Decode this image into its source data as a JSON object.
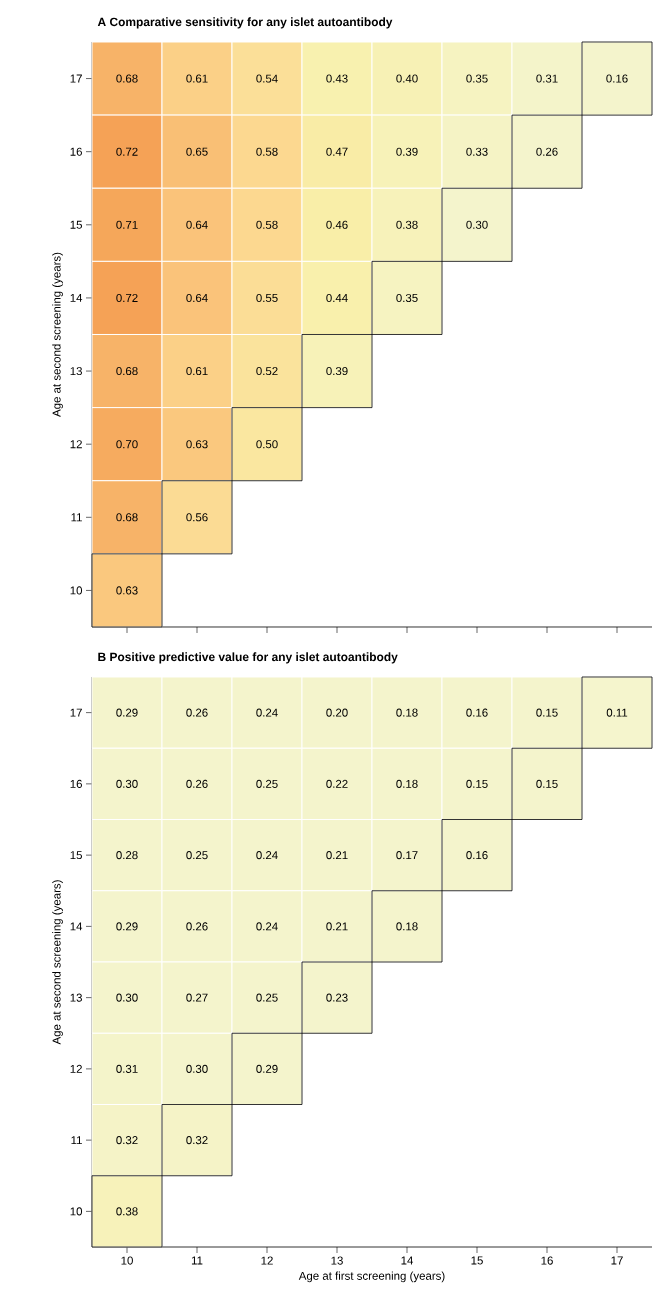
{
  "chart_data": [
    {
      "type": "heatmap",
      "title": "A  Comparative sensitivity for any islet autoantibody",
      "ylabel": "Age at second screening (years)",
      "categories": [
        "10",
        "11",
        "12",
        "13",
        "14",
        "15",
        "16",
        "17"
      ],
      "y_categories": [
        "17",
        "16",
        "15",
        "14",
        "13",
        "12",
        "11",
        "10"
      ],
      "cells": [
        [
          0.68,
          0.61,
          0.54,
          0.43,
          0.4,
          0.35,
          0.31,
          0.16
        ],
        [
          0.72,
          0.65,
          0.58,
          0.47,
          0.39,
          0.33,
          0.26,
          null
        ],
        [
          0.71,
          0.64,
          0.58,
          0.46,
          0.38,
          0.3,
          null,
          null
        ],
        [
          0.72,
          0.64,
          0.55,
          0.44,
          0.35,
          null,
          null,
          null
        ],
        [
          0.68,
          0.61,
          0.52,
          0.39,
          null,
          null,
          null,
          null
        ],
        [
          0.7,
          0.63,
          0.5,
          null,
          null,
          null,
          null,
          null
        ],
        [
          0.68,
          0.56,
          null,
          null,
          null,
          null,
          null,
          null
        ],
        [
          0.63,
          null,
          null,
          null,
          null,
          null,
          null,
          null
        ]
      ],
      "cell_labels": [
        [
          "0.68",
          "0.61",
          "0.54",
          "0.43",
          "0.40",
          "0.35",
          "0.31",
          "0.16"
        ],
        [
          "0.72",
          "0.65",
          "0.58",
          "0.47",
          "0.39",
          "0.33",
          "0.26",
          null
        ],
        [
          "0.71",
          "0.64",
          "0.58",
          "0.46",
          "0.38",
          "0.30",
          null,
          null
        ],
        [
          "0.72",
          "0.64",
          "0.55",
          "0.44",
          "0.35",
          null,
          null,
          null
        ],
        [
          "0.68",
          "0.61",
          "0.52",
          "0.39",
          null,
          null,
          null,
          null
        ],
        [
          "0.70",
          "0.63",
          "0.50",
          null,
          null,
          null,
          null,
          null
        ],
        [
          "0.68",
          "0.56",
          null,
          null,
          null,
          null,
          null,
          null
        ],
        [
          "0.63",
          null,
          null,
          null,
          null,
          null,
          null,
          null
        ]
      ],
      "data_labels": true,
      "tick_labels": "y"
    },
    {
      "type": "heatmap",
      "title": "B  Positive predictive value for any islet autoantibody",
      "xlabel": "Age at first screening (years)",
      "ylabel": "Age at second screening (years)",
      "categories": [
        "10",
        "11",
        "12",
        "13",
        "14",
        "15",
        "16",
        "17"
      ],
      "y_categories": [
        "17",
        "16",
        "15",
        "14",
        "13",
        "12",
        "11",
        "10"
      ],
      "cells": [
        [
          0.29,
          0.26,
          0.24,
          0.2,
          0.18,
          0.16,
          0.15,
          0.11
        ],
        [
          0.3,
          0.26,
          0.25,
          0.22,
          0.18,
          0.15,
          0.15,
          null
        ],
        [
          0.28,
          0.25,
          0.24,
          0.21,
          0.17,
          0.16,
          null,
          null
        ],
        [
          0.29,
          0.26,
          0.24,
          0.21,
          0.18,
          null,
          null,
          null
        ],
        [
          0.3,
          0.27,
          0.25,
          0.23,
          null,
          null,
          null,
          null
        ],
        [
          0.31,
          0.3,
          0.29,
          null,
          null,
          null,
          null,
          null
        ],
        [
          0.32,
          0.32,
          null,
          null,
          null,
          null,
          null,
          null
        ],
        [
          0.38,
          null,
          null,
          null,
          null,
          null,
          null,
          null
        ]
      ],
      "cell_labels": [
        [
          "0.29",
          "0.26",
          "0.24",
          "0.20",
          "0.18",
          "0.16",
          "0.15",
          "0.11"
        ],
        [
          "0.30",
          "0.26",
          "0.25",
          "0.22",
          "0.18",
          "0.15",
          "0.15",
          null
        ],
        [
          "0.28",
          "0.25",
          "0.24",
          "0.21",
          "0.17",
          "0.16",
          null,
          null
        ],
        [
          "0.29",
          "0.26",
          "0.24",
          "0.21",
          "0.18",
          null,
          null,
          null
        ],
        [
          "0.30",
          "0.27",
          "0.25",
          "0.23",
          null,
          null,
          null,
          null
        ],
        [
          "0.31",
          "0.30",
          "0.29",
          null,
          null,
          null,
          null,
          null
        ],
        [
          "0.32",
          "0.32",
          null,
          null,
          null,
          null,
          null,
          null
        ],
        [
          "0.38",
          null,
          null,
          null,
          null,
          null,
          null,
          null
        ]
      ],
      "data_labels": true
    }
  ]
}
